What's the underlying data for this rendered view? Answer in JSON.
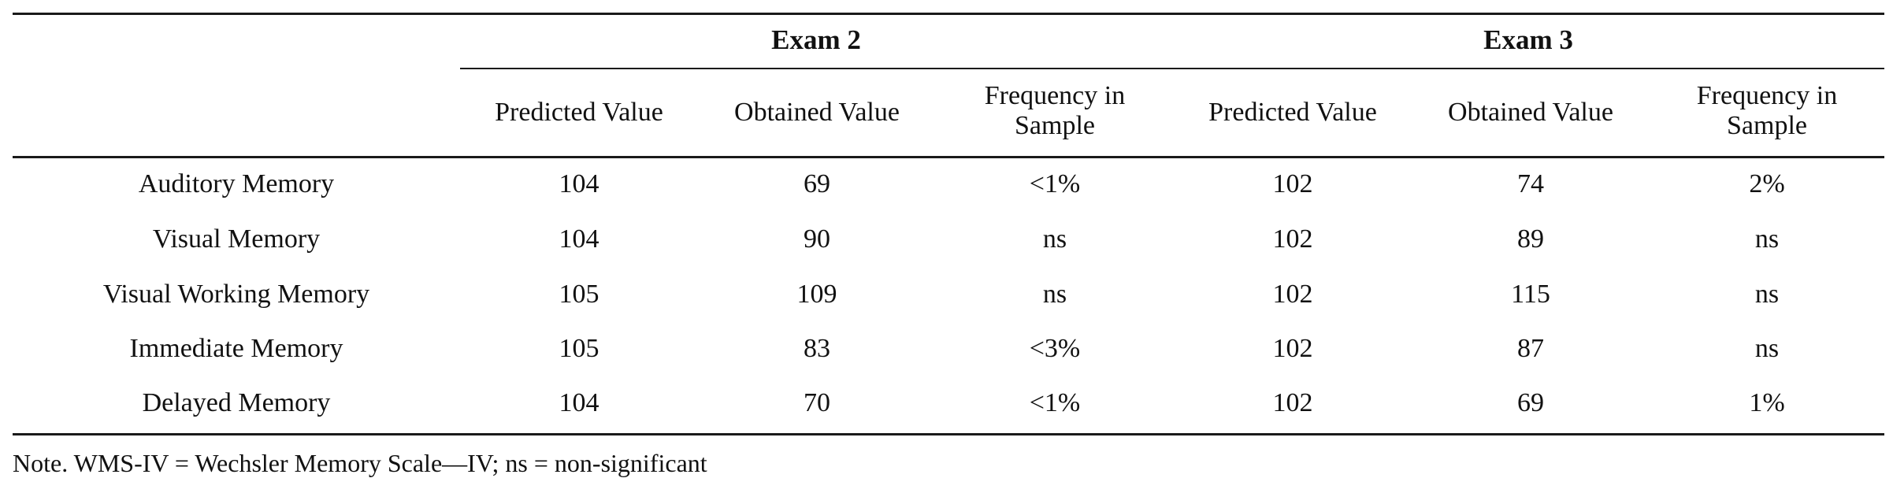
{
  "table": {
    "group_headers": [
      "Exam 2",
      "Exam 3"
    ],
    "column_headers": [
      [
        "Predicted Value"
      ],
      [
        "Obtained Value"
      ],
      [
        "Frequency in",
        "Sample"
      ],
      [
        "Predicted Value"
      ],
      [
        "Obtained Value"
      ],
      [
        "Frequency in",
        "Sample"
      ]
    ],
    "rows": [
      {
        "label": "Auditory Memory",
        "values": [
          "104",
          "69",
          "<1%",
          "102",
          "74",
          "2%"
        ]
      },
      {
        "label": "Visual Memory",
        "values": [
          "104",
          "90",
          "ns",
          "102",
          "89",
          "ns"
        ]
      },
      {
        "label": "Visual Working Memory",
        "values": [
          "105",
          "109",
          "ns",
          "102",
          "115",
          "ns"
        ]
      },
      {
        "label": "Immediate Memory",
        "values": [
          "105",
          "83",
          "<3%",
          "102",
          "87",
          "ns"
        ]
      },
      {
        "label": "Delayed Memory",
        "values": [
          "104",
          "70",
          "<1%",
          "102",
          "69",
          "1%"
        ]
      }
    ]
  },
  "note": "Note. WMS-IV = Wechsler Memory Scale—IV; ns = non-significant"
}
